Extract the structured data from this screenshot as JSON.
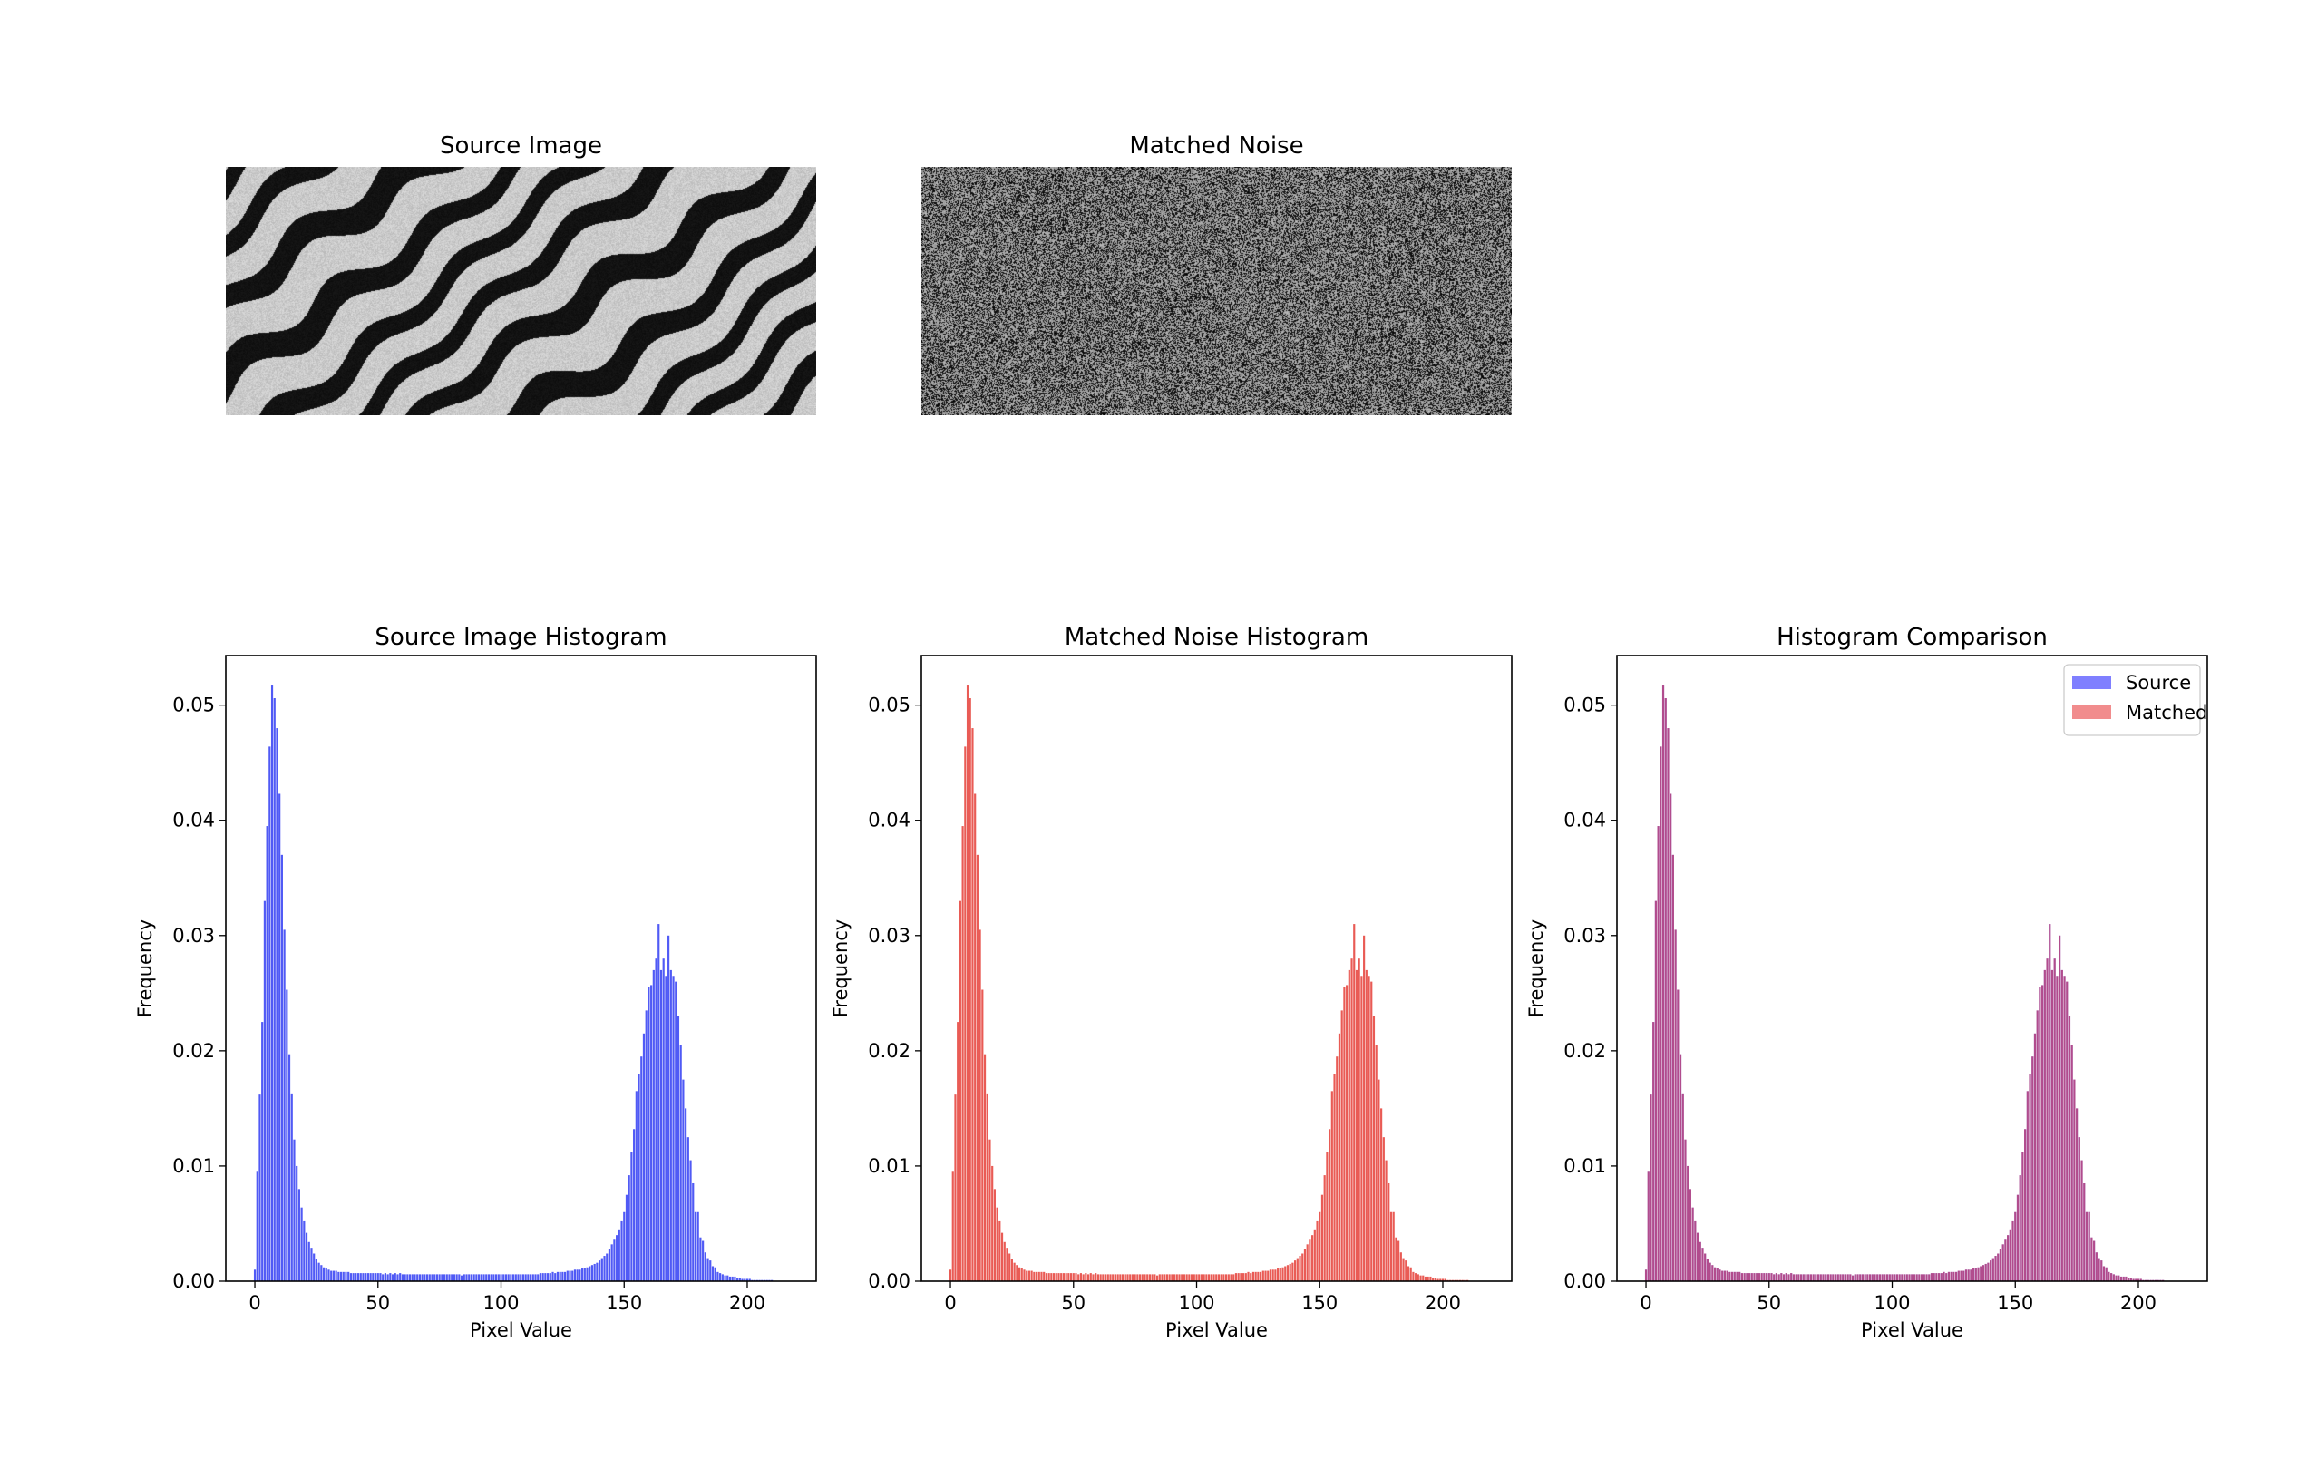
{
  "images": [
    {
      "title": "Source Image"
    },
    {
      "title": "Matched Noise"
    }
  ],
  "chart_data": [
    {
      "type": "bar",
      "title": "Source Image Histogram",
      "xlabel": "Pixel Value",
      "ylabel": "Frequency",
      "xlim": [
        -11.8,
        228
      ],
      "ylim": [
        0,
        0.0543
      ],
      "xticks": [
        "0",
        "50",
        "100",
        "150",
        "200"
      ],
      "yticks": [
        "0.00",
        "0.01",
        "0.02",
        "0.03",
        "0.04",
        "0.05"
      ],
      "grid": false,
      "x_start": 0,
      "bin_width": 1,
      "series": [
        {
          "color": "#4a55f5",
          "values": "@hist"
        }
      ]
    },
    {
      "type": "bar",
      "title": "Matched Noise Histogram",
      "xlabel": "Pixel Value",
      "ylabel": "Frequency",
      "xlim": [
        -11.8,
        228
      ],
      "ylim": [
        0,
        0.0543
      ],
      "xticks": [
        "0",
        "50",
        "100",
        "150",
        "200"
      ],
      "yticks": [
        "0.00",
        "0.01",
        "0.02",
        "0.03",
        "0.04",
        "0.05"
      ],
      "grid": false,
      "x_start": 0,
      "bin_width": 1,
      "series": [
        {
          "color": "#e8564f",
          "values": "@hist"
        }
      ]
    },
    {
      "type": "bar",
      "title": "Histogram Comparison",
      "xlabel": "Pixel Value",
      "ylabel": "Frequency",
      "xlim": [
        -11.8,
        228
      ],
      "ylim": [
        0,
        0.0543
      ],
      "xticks": [
        "0",
        "50",
        "100",
        "150",
        "200"
      ],
      "yticks": [
        "0.00",
        "0.01",
        "0.02",
        "0.03",
        "0.04",
        "0.05"
      ],
      "grid": false,
      "legend_position": "top-right",
      "x_start": 0,
      "bin_width": 1,
      "series": [
        {
          "name": "Source",
          "color": "#0000ff",
          "alpha": 0.5,
          "values": "@hist"
        },
        {
          "name": "Matched",
          "color": "#e41a1c",
          "alpha": 0.5,
          "values": "@hist"
        }
      ]
    }
  ],
  "hist": [
    0.001,
    0.0095,
    0.0162,
    0.0225,
    0.033,
    0.0395,
    0.0464,
    0.0517,
    0.0506,
    0.048,
    0.0423,
    0.037,
    0.0305,
    0.0253,
    0.0197,
    0.0163,
    0.0123,
    0.01,
    0.008,
    0.0064,
    0.0052,
    0.0042,
    0.0034,
    0.0029,
    0.0024,
    0.0019,
    0.0016,
    0.0014,
    0.0012,
    0.0011,
    0.001,
    0.0009,
    0.0009,
    0.0009,
    0.0008,
    0.0008,
    0.0008,
    0.0008,
    0.0008,
    0.0007,
    0.0007,
    0.0007,
    0.0007,
    0.0007,
    0.0007,
    0.0007,
    0.0007,
    0.0007,
    0.0007,
    0.0007,
    0.0007,
    0.0007,
    0.0006,
    0.0007,
    0.0006,
    0.0007,
    0.0006,
    0.0007,
    0.0006,
    0.0007,
    0.0006,
    0.0006,
    0.0006,
    0.0006,
    0.0006,
    0.0006,
    0.0006,
    0.0006,
    0.0006,
    0.0006,
    0.0006,
    0.0006,
    0.0006,
    0.0006,
    0.0006,
    0.0006,
    0.0006,
    0.0006,
    0.0006,
    0.0006,
    0.0006,
    0.0006,
    0.0006,
    0.0006,
    0.0005,
    0.0006,
    0.0006,
    0.0006,
    0.0006,
    0.0006,
    0.0006,
    0.0006,
    0.0006,
    0.0006,
    0.0006,
    0.0006,
    0.0006,
    0.0006,
    0.0006,
    0.0006,
    0.0006,
    0.0006,
    0.0006,
    0.0006,
    0.0006,
    0.0006,
    0.0006,
    0.0006,
    0.0006,
    0.0006,
    0.0006,
    0.0006,
    0.0006,
    0.0006,
    0.0006,
    0.0006,
    0.0007,
    0.0007,
    0.0007,
    0.0007,
    0.0007,
    0.0008,
    0.0007,
    0.0008,
    0.0008,
    0.0008,
    0.0008,
    0.0009,
    0.0009,
    0.0009,
    0.001,
    0.001,
    0.001,
    0.0011,
    0.0011,
    0.0012,
    0.0013,
    0.0014,
    0.0015,
    0.0016,
    0.0018,
    0.002,
    0.0022,
    0.0024,
    0.0028,
    0.0032,
    0.0036,
    0.004,
    0.0045,
    0.0052,
    0.006,
    0.0075,
    0.0092,
    0.0112,
    0.0132,
    0.0165,
    0.018,
    0.0195,
    0.0215,
    0.0235,
    0.0255,
    0.0257,
    0.027,
    0.028,
    0.031,
    0.027,
    0.028,
    0.0265,
    0.03,
    0.027,
    0.0265,
    0.026,
    0.023,
    0.0205,
    0.0175,
    0.015,
    0.0125,
    0.0105,
    0.0085,
    0.006,
    0.006,
    0.0038,
    0.0035,
    0.0025,
    0.002,
    0.0018,
    0.0013,
    0.0012,
    0.0008,
    0.0007,
    0.0006,
    0.0005,
    0.0005,
    0.0004,
    0.0004,
    0.0004,
    0.0003,
    0.0003,
    0.0002,
    0.0002,
    0.0002,
    0.0002,
    0.0001,
    0.0001,
    0.0001,
    0.0001,
    0.0001,
    0.0001,
    0.0001,
    0.0001,
    0.0001
  ]
}
